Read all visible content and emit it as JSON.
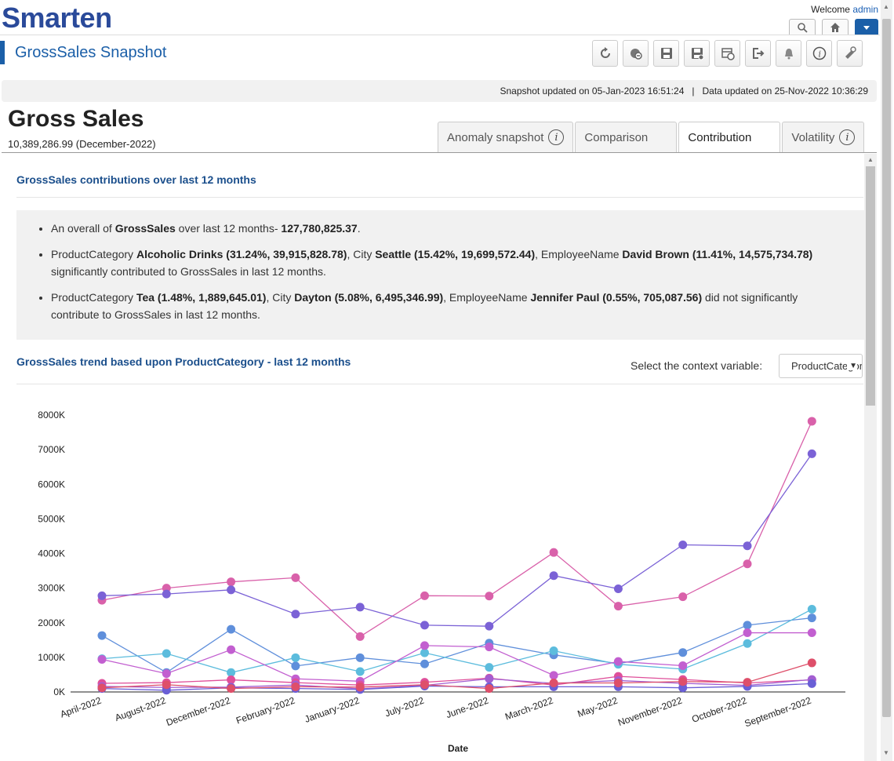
{
  "app": {
    "logo": "Smarten",
    "welcome_prefix": "Welcome",
    "user": "admin",
    "title": "GrossSales Snapshot"
  },
  "status": {
    "snapshot_updated": "Snapshot updated on 05-Jan-2023 16:51:24",
    "separator": "|",
    "data_updated": "Data updated on 25-Nov-2022 10:36:29"
  },
  "kpi": {
    "title": "Gross Sales",
    "value_line": "10,389,286.99 (December-2022)"
  },
  "tabs": [
    {
      "label": "Anomaly snapshot",
      "info": true,
      "active": false
    },
    {
      "label": "Comparison",
      "info": false,
      "active": false
    },
    {
      "label": "Contribution",
      "info": false,
      "active": true
    },
    {
      "label": "Volatility",
      "info": true,
      "active": false
    }
  ],
  "contribution": {
    "section_title": "GrossSales contributions over last 12 months",
    "bullet1": {
      "p1": "An overall of ",
      "b1": "GrossSales",
      "p2": " over last 12 months- ",
      "b2": "127,780,825.37",
      "p3": "."
    },
    "bullet2": {
      "p1": "ProductCategory ",
      "b1": "Alcoholic Drinks (31.24%, 39,915,828.78)",
      "p2": ", City ",
      "b2": "Seattle (15.42%, 19,699,572.44)",
      "p3": ", EmployeeName ",
      "b3": "David Brown (11.41%, 14,575,734.78)",
      "p4": " significantly contributed to GrossSales in last 12 months."
    },
    "bullet3": {
      "p1": "ProductCategory ",
      "b1": "Tea (1.48%, 1,889,645.01)",
      "p2": ", City ",
      "b2": "Dayton (5.08%, 6,495,346.99)",
      "p3": ", EmployeeName ",
      "b3": "Jennifer Paul (0.55%, 705,087.56)",
      "p4": " did not significantly contribute to GrossSales in last 12 months."
    }
  },
  "trend": {
    "section_title": "GrossSales trend based upon ProductCategory - last 12 months",
    "context_label": "Select the context variable:",
    "context_value": "ProductCategory"
  },
  "icons": {
    "toolbar": [
      "refresh-icon",
      "globe-icon",
      "save-icon",
      "save-as-icon",
      "schedule-icon",
      "export-icon",
      "alert-icon",
      "info-icon",
      "settings-icon"
    ],
    "top": [
      "search-icon",
      "home-icon",
      "dropdown-icon"
    ]
  },
  "chart_data": {
    "type": "line",
    "title": "",
    "xlabel": "Date",
    "ylabel": "",
    "categories": [
      "April-2022",
      "August-2022",
      "December-2022",
      "February-2022",
      "January-2022",
      "July-2022",
      "June-2022",
      "March-2022",
      "May-2022",
      "November-2022",
      "October-2022",
      "September-2022"
    ],
    "ylim": [
      0,
      8000000
    ],
    "yticks": [
      0,
      1000000,
      2000000,
      3000000,
      4000000,
      5000000,
      6000000,
      7000000,
      8000000
    ],
    "ytick_labels": [
      "0K",
      "1000K",
      "2000K",
      "3000K",
      "4000K",
      "5000K",
      "6000K",
      "7000K",
      "8000K"
    ],
    "grid": false,
    "series": [
      {
        "color": "#d961aa",
        "values": [
          2650000,
          3000000,
          3180000,
          3300000,
          1600000,
          2780000,
          2770000,
          4030000,
          2480000,
          2750000,
          3700000,
          7820000
        ]
      },
      {
        "color": "#7b62d6",
        "values": [
          2780000,
          2830000,
          2950000,
          2250000,
          2450000,
          1930000,
          1900000,
          3360000,
          2980000,
          4250000,
          4220000,
          6880000
        ]
      },
      {
        "color": "#5f8fdb",
        "values": [
          1630000,
          560000,
          1810000,
          750000,
          990000,
          810000,
          1410000,
          1070000,
          820000,
          1140000,
          1930000,
          2140000
        ]
      },
      {
        "color": "#5cbcdd",
        "values": [
          960000,
          1110000,
          560000,
          990000,
          590000,
          1130000,
          710000,
          1190000,
          800000,
          660000,
          1400000,
          2390000
        ]
      },
      {
        "color": "#c25fd0",
        "values": [
          940000,
          530000,
          1220000,
          380000,
          310000,
          1340000,
          1300000,
          480000,
          880000,
          760000,
          1710000,
          1710000
        ]
      },
      {
        "color": "#df4f9a",
        "values": [
          250000,
          270000,
          350000,
          270000,
          200000,
          280000,
          400000,
          200000,
          450000,
          360000,
          260000,
          350000
        ]
      },
      {
        "color": "#a35ed1",
        "values": [
          160000,
          130000,
          140000,
          200000,
          90000,
          190000,
          380000,
          250000,
          330000,
          250000,
          190000,
          360000
        ]
      },
      {
        "color": "#6a5fd6",
        "values": [
          100000,
          50000,
          120000,
          100000,
          70000,
          170000,
          150000,
          150000,
          150000,
          120000,
          160000,
          240000
        ]
      },
      {
        "color": "#de4f6a",
        "values": [
          120000,
          210000,
          100000,
          150000,
          140000,
          210000,
          100000,
          260000,
          260000,
          300000,
          280000,
          840000
        ]
      }
    ]
  }
}
